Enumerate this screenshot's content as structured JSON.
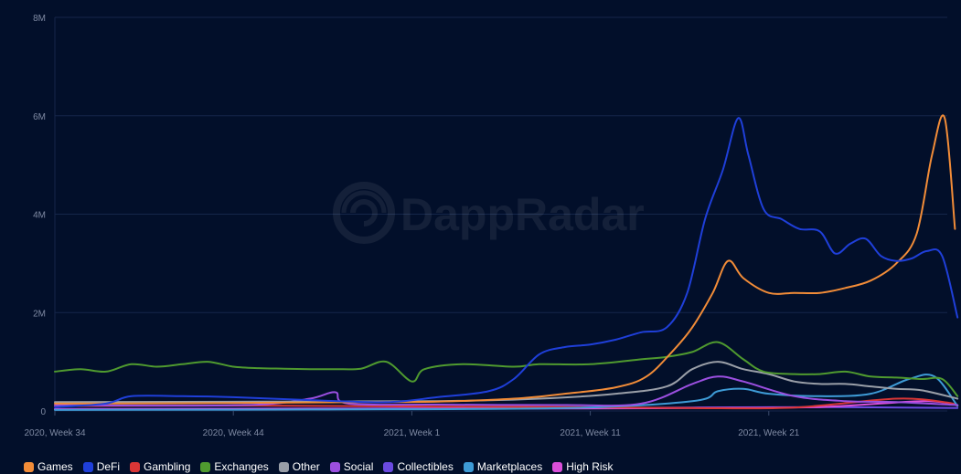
{
  "watermark": {
    "text": "DappRadar"
  },
  "chart_data": {
    "type": "line",
    "title": "",
    "xlabel": "",
    "ylabel": "",
    "ylim": [
      0,
      8000000
    ],
    "y_ticks": [
      {
        "value": 0,
        "label": "0"
      },
      {
        "value": 2000000,
        "label": "2M"
      },
      {
        "value": 4000000,
        "label": "4M"
      },
      {
        "value": 6000000,
        "label": "6M"
      },
      {
        "value": 8000000,
        "label": "8M"
      }
    ],
    "x_ticks": [
      {
        "index": 0,
        "label": "2020, Week 34"
      },
      {
        "index": 70,
        "label": "2020, Week 44"
      },
      {
        "index": 140,
        "label": "2021, Week 1"
      },
      {
        "index": 210,
        "label": "2021, Week 11"
      },
      {
        "index": 280,
        "label": "2021, Week 21"
      }
    ],
    "x_count": 350,
    "grid": true,
    "legend_position": "bottom-left",
    "series": [
      {
        "name": "Games",
        "color": "#f28c38",
        "points": [
          [
            0,
            150000
          ],
          [
            60,
            160000
          ],
          [
            120,
            180000
          ],
          [
            150,
            190000
          ],
          [
            180,
            250000
          ],
          [
            200,
            350000
          ],
          [
            220,
            480000
          ],
          [
            232,
            700000
          ],
          [
            242,
            1200000
          ],
          [
            250,
            1700000
          ],
          [
            258,
            2400000
          ],
          [
            264,
            3050000
          ],
          [
            270,
            2700000
          ],
          [
            280,
            2400000
          ],
          [
            290,
            2400000
          ],
          [
            300,
            2400000
          ],
          [
            310,
            2500000
          ],
          [
            320,
            2650000
          ],
          [
            330,
            3000000
          ],
          [
            338,
            3600000
          ],
          [
            344,
            5200000
          ],
          [
            349,
            5950000
          ],
          [
            353,
            3700000
          ]
        ]
      },
      {
        "name": "DeFi",
        "color": "#1f3fd9",
        "points": [
          [
            0,
            80000
          ],
          [
            20,
            150000
          ],
          [
            30,
            300000
          ],
          [
            50,
            300000
          ],
          [
            70,
            280000
          ],
          [
            100,
            220000
          ],
          [
            130,
            180000
          ],
          [
            150,
            280000
          ],
          [
            170,
            400000
          ],
          [
            180,
            650000
          ],
          [
            190,
            1150000
          ],
          [
            200,
            1300000
          ],
          [
            210,
            1350000
          ],
          [
            220,
            1450000
          ],
          [
            230,
            1600000
          ],
          [
            240,
            1700000
          ],
          [
            248,
            2400000
          ],
          [
            255,
            3900000
          ],
          [
            262,
            4900000
          ],
          [
            268,
            5950000
          ],
          [
            272,
            5200000
          ],
          [
            278,
            4100000
          ],
          [
            285,
            3900000
          ],
          [
            292,
            3700000
          ],
          [
            300,
            3650000
          ],
          [
            306,
            3200000
          ],
          [
            312,
            3400000
          ],
          [
            318,
            3500000
          ],
          [
            324,
            3150000
          ],
          [
            330,
            3050000
          ],
          [
            336,
            3100000
          ],
          [
            342,
            3250000
          ],
          [
            348,
            3150000
          ],
          [
            354,
            1900000
          ]
        ]
      },
      {
        "name": "Gambling",
        "color": "#d93636",
        "points": [
          [
            0,
            100000
          ],
          [
            80,
            110000
          ],
          [
            150,
            90000
          ],
          [
            200,
            80000
          ],
          [
            250,
            60000
          ],
          [
            290,
            70000
          ],
          [
            330,
            250000
          ],
          [
            350,
            170000
          ],
          [
            354,
            100000
          ]
        ]
      },
      {
        "name": "Exchanges",
        "color": "#4f9a2f",
        "points": [
          [
            0,
            800000
          ],
          [
            10,
            850000
          ],
          [
            20,
            800000
          ],
          [
            30,
            950000
          ],
          [
            40,
            900000
          ],
          [
            50,
            950000
          ],
          [
            60,
            1000000
          ],
          [
            70,
            900000
          ],
          [
            80,
            870000
          ],
          [
            90,
            860000
          ],
          [
            100,
            850000
          ],
          [
            110,
            850000
          ],
          [
            120,
            860000
          ],
          [
            130,
            1000000
          ],
          [
            140,
            600000
          ],
          [
            145,
            850000
          ],
          [
            160,
            950000
          ],
          [
            180,
            900000
          ],
          [
            190,
            950000
          ],
          [
            210,
            950000
          ],
          [
            230,
            1050000
          ],
          [
            240,
            1100000
          ],
          [
            250,
            1200000
          ],
          [
            260,
            1400000
          ],
          [
            270,
            1050000
          ],
          [
            278,
            800000
          ],
          [
            290,
            750000
          ],
          [
            300,
            750000
          ],
          [
            310,
            800000
          ],
          [
            320,
            700000
          ],
          [
            330,
            680000
          ],
          [
            340,
            650000
          ],
          [
            348,
            650000
          ],
          [
            354,
            300000
          ]
        ]
      },
      {
        "name": "Other",
        "color": "#9a9fa8",
        "points": [
          [
            0,
            180000
          ],
          [
            80,
            190000
          ],
          [
            150,
            200000
          ],
          [
            190,
            250000
          ],
          [
            220,
            350000
          ],
          [
            240,
            500000
          ],
          [
            250,
            850000
          ],
          [
            260,
            1000000
          ],
          [
            270,
            850000
          ],
          [
            280,
            750000
          ],
          [
            290,
            600000
          ],
          [
            300,
            550000
          ],
          [
            310,
            550000
          ],
          [
            320,
            500000
          ],
          [
            330,
            450000
          ],
          [
            340,
            420000
          ],
          [
            354,
            250000
          ]
        ]
      },
      {
        "name": "Social",
        "color": "#9b4fe0",
        "points": [
          [
            0,
            120000
          ],
          [
            40,
            110000
          ],
          [
            80,
            130000
          ],
          [
            100,
            250000
          ],
          [
            110,
            380000
          ],
          [
            115,
            150000
          ],
          [
            150,
            130000
          ],
          [
            200,
            120000
          ],
          [
            230,
            150000
          ],
          [
            250,
            550000
          ],
          [
            260,
            700000
          ],
          [
            270,
            600000
          ],
          [
            290,
            300000
          ],
          [
            310,
            200000
          ],
          [
            330,
            180000
          ],
          [
            354,
            120000
          ]
        ]
      },
      {
        "name": "Collectibles",
        "color": "#6a4ae0",
        "points": [
          [
            0,
            40000
          ],
          [
            100,
            50000
          ],
          [
            200,
            60000
          ],
          [
            250,
            70000
          ],
          [
            300,
            80000
          ],
          [
            354,
            60000
          ]
        ]
      },
      {
        "name": "Marketplaces",
        "color": "#3e9bd6",
        "points": [
          [
            0,
            20000
          ],
          [
            100,
            30000
          ],
          [
            200,
            60000
          ],
          [
            250,
            200000
          ],
          [
            260,
            400000
          ],
          [
            270,
            450000
          ],
          [
            280,
            350000
          ],
          [
            300,
            300000
          ],
          [
            320,
            350000
          ],
          [
            335,
            650000
          ],
          [
            345,
            700000
          ],
          [
            354,
            100000
          ]
        ]
      },
      {
        "name": "High Risk",
        "color": "#d94fd9",
        "points": [
          [
            0,
            30000
          ],
          [
            100,
            40000
          ],
          [
            200,
            50000
          ],
          [
            250,
            60000
          ],
          [
            300,
            80000
          ],
          [
            340,
            200000
          ],
          [
            354,
            120000
          ]
        ]
      }
    ]
  }
}
